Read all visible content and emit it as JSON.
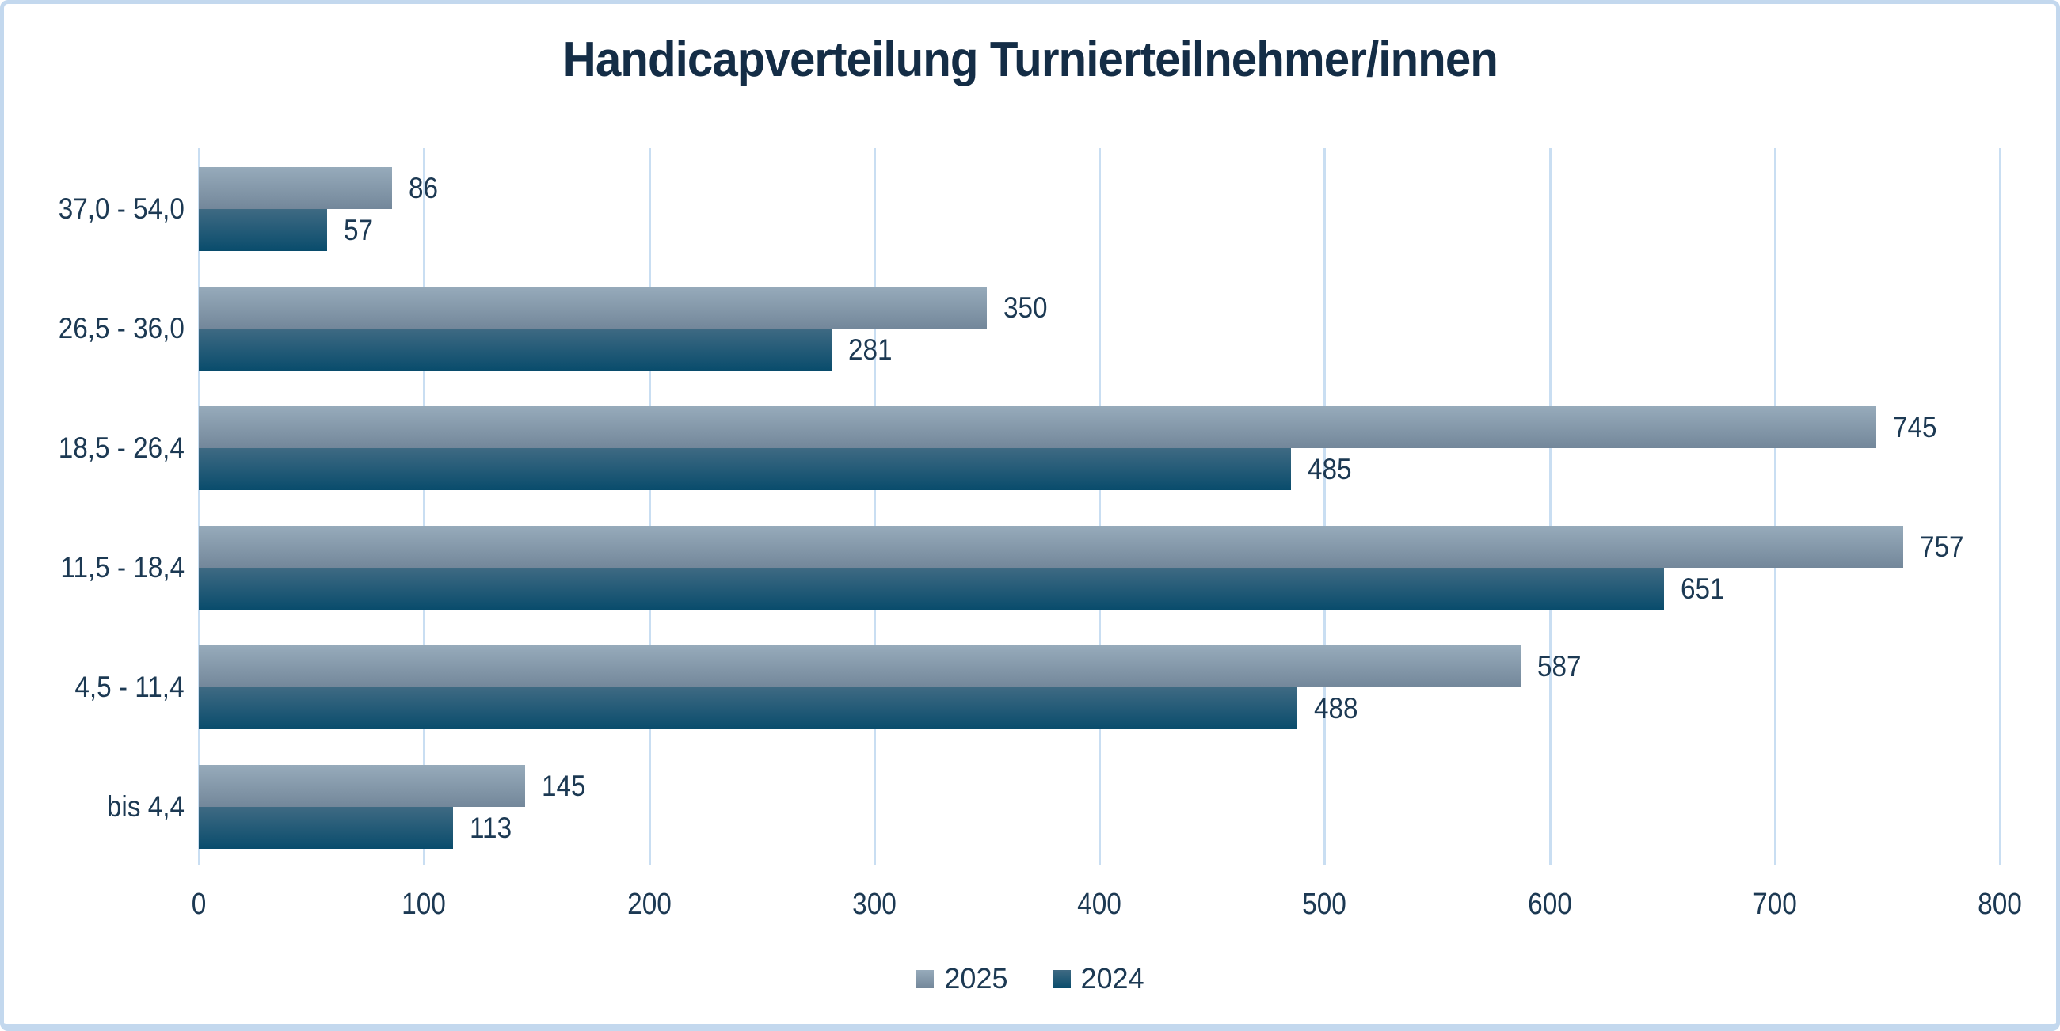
{
  "colors": {
    "frame_border": "#c3d8ee",
    "gridline": "#c9def2",
    "title_text": "#142d46",
    "label_text": "#1c3953",
    "series_2025_top": "#97abbb",
    "series_2025_bottom": "#73879a",
    "series_2024_top": "#3f6a83",
    "series_2024_bottom": "#094c6c"
  },
  "chart_data": {
    "type": "bar",
    "orientation": "horizontal",
    "title": "Handicapverteilung Turnierteilnehmer/innen",
    "categories": [
      "37,0 - 54,0",
      "26,5 - 36,0",
      "18,5 - 26,4",
      "11,5 - 18,4",
      "4,5 - 11,4",
      "bis 4,4"
    ],
    "series": [
      {
        "name": "2025",
        "values": [
          86,
          350,
          745,
          757,
          587,
          145
        ],
        "color_top": "#97abbb",
        "color_bottom": "#73879a"
      },
      {
        "name": "2024",
        "values": [
          57,
          281,
          485,
          651,
          488,
          113
        ],
        "color_top": "#3f6a83",
        "color_bottom": "#094c6c"
      }
    ],
    "xlim": [
      0,
      800
    ],
    "x_ticks": [
      "0",
      "100",
      "200",
      "300",
      "400",
      "500",
      "600",
      "700",
      "800"
    ],
    "grid": true,
    "legend_position": "bottom",
    "value_labels": true,
    "xlabel": "",
    "ylabel": ""
  }
}
